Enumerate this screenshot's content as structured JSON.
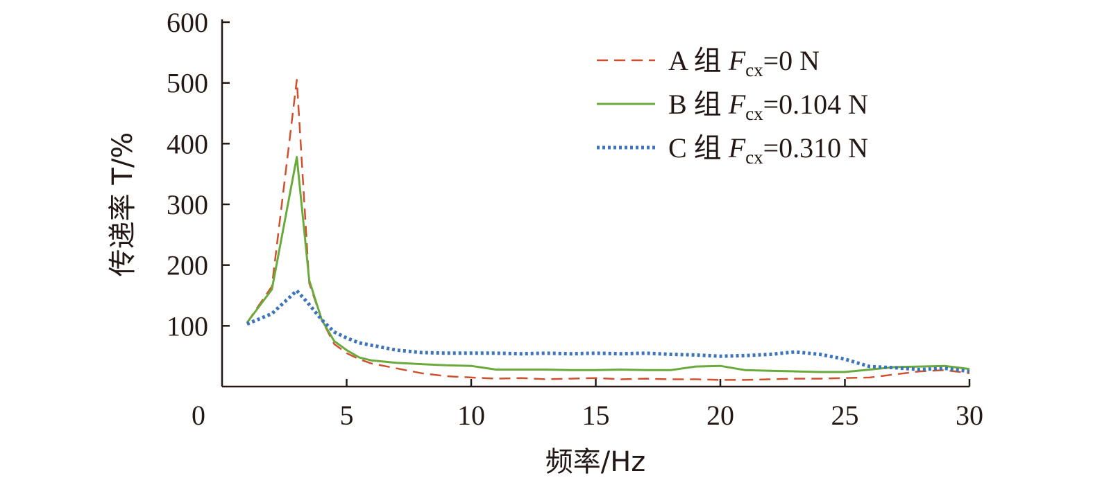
{
  "chart_data": {
    "type": "line",
    "xlabel": "频率/Hz",
    "ylabel": "传递率 T/%",
    "xlim": [
      0,
      30
    ],
    "ylim": [
      0,
      600
    ],
    "xticks": [
      0,
      5,
      10,
      15,
      20,
      25,
      30
    ],
    "yticks": [
      100,
      200,
      300,
      400,
      500,
      600
    ],
    "ytick_labels": [
      "100",
      "200",
      "300",
      "400",
      "500",
      "600"
    ],
    "xtick_labels": [
      "0",
      "5",
      "10",
      "15",
      "20",
      "25",
      "30"
    ],
    "grid": false,
    "legend_position": "top-right",
    "series": [
      {
        "name": "A 组 Fcx=0 N",
        "legend": {
          "prefix": "A 组 ",
          "var": "F",
          "sub": "cx",
          "suffix": "=0 N"
        },
        "color": "#d0502e",
        "style": "dashed",
        "x": [
          1,
          2,
          3,
          3.5,
          4,
          4.5,
          5,
          5.5,
          6,
          7,
          8,
          9,
          10,
          11,
          12,
          13,
          14,
          15,
          16,
          17,
          18,
          19,
          20,
          21,
          22,
          23,
          24,
          25,
          26,
          27,
          28,
          29,
          30
        ],
        "y": [
          105,
          165,
          505,
          170,
          110,
          70,
          55,
          45,
          38,
          30,
          22,
          17,
          15,
          13,
          14,
          12,
          13,
          14,
          12,
          13,
          12,
          12,
          11,
          11,
          12,
          13,
          13,
          14,
          15,
          20,
          25,
          27,
          22
        ]
      },
      {
        "name": "B 组 Fcx=0.104 N",
        "legend": {
          "prefix": "B 组 ",
          "var": "F",
          "sub": "cx",
          "suffix": "=0.104 N"
        },
        "color": "#6aaa3c",
        "style": "solid",
        "x": [
          1,
          2,
          3,
          3.5,
          4,
          4.5,
          5,
          5.5,
          6,
          7,
          8,
          9,
          10,
          11,
          12,
          13,
          14,
          15,
          16,
          17,
          18,
          19,
          20,
          21,
          22,
          23,
          24,
          25,
          26,
          27,
          28,
          29,
          30
        ],
        "y": [
          105,
          160,
          378,
          175,
          110,
          75,
          60,
          48,
          43,
          39,
          37,
          35,
          34,
          28,
          28,
          28,
          27,
          27,
          28,
          27,
          27,
          33,
          34,
          27,
          26,
          25,
          24,
          24,
          28,
          32,
          33,
          34,
          29
        ]
      },
      {
        "name": "C 组 Fcx=0.310 N",
        "legend": {
          "prefix": "C 组 ",
          "var": "F",
          "sub": "cx",
          "suffix": "=0.310 N"
        },
        "color": "#3d73b9",
        "style": "dotted",
        "x": [
          1,
          2,
          3,
          3.5,
          4,
          4.5,
          5,
          5.5,
          6,
          7,
          8,
          9,
          10,
          11,
          12,
          13,
          14,
          15,
          16,
          17,
          18,
          19,
          20,
          21,
          22,
          23,
          24,
          25,
          26,
          27,
          28,
          29,
          30
        ],
        "y": [
          103,
          120,
          158,
          135,
          110,
          90,
          80,
          72,
          68,
          60,
          56,
          55,
          55,
          55,
          54,
          55,
          54,
          55,
          54,
          55,
          53,
          52,
          50,
          51,
          53,
          57,
          53,
          45,
          33,
          31,
          28,
          30,
          25
        ]
      }
    ]
  }
}
